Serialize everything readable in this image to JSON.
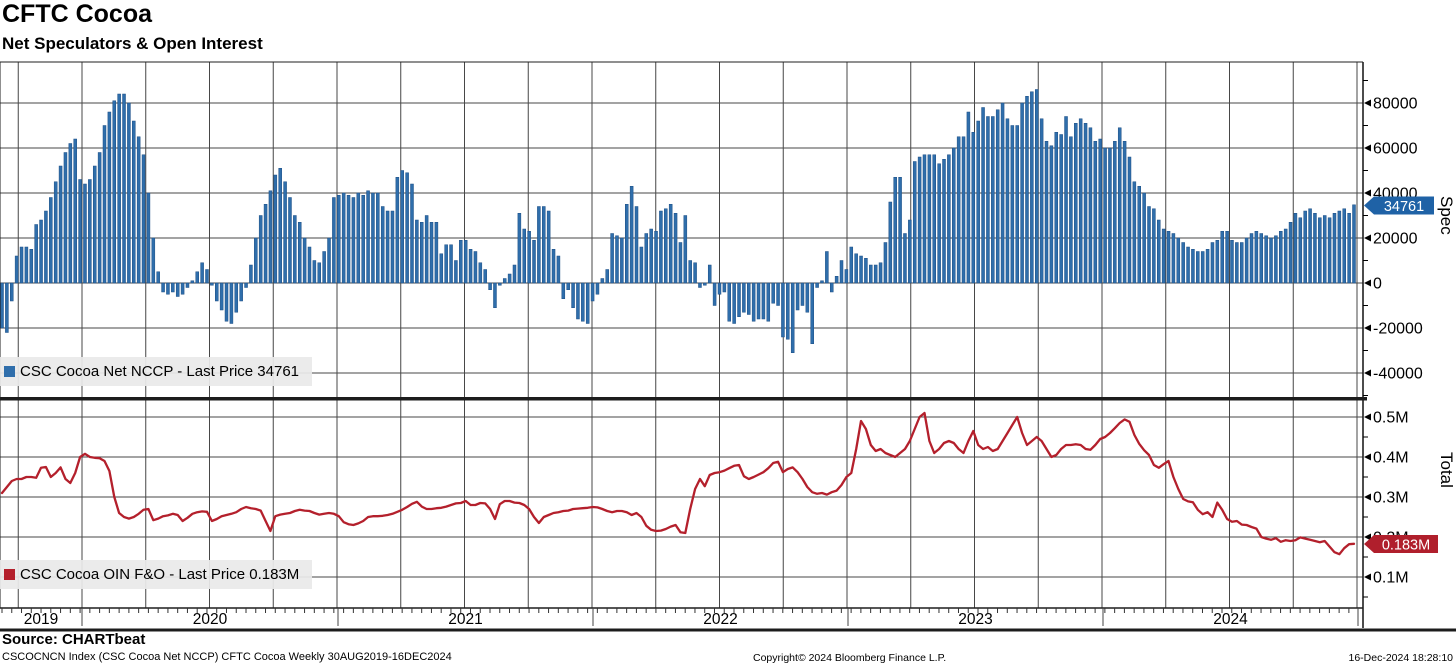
{
  "header": {
    "title": "CFTC Cocoa",
    "subtitle": "Net Speculators & Open Interest"
  },
  "panels": {
    "spec": {
      "legend_label": "CSC Cocoa Net NCCP - Last Price 34761",
      "axis_title": "Spec",
      "badge": "34761",
      "y_ticks": [
        {
          "label": "80000",
          "value": 80000
        },
        {
          "label": "60000",
          "value": 60000
        },
        {
          "label": "40000",
          "value": 40000
        },
        {
          "label": "20000",
          "value": 20000
        },
        {
          "label": "0",
          "value": 0
        },
        {
          "label": "-20000",
          "value": -20000
        },
        {
          "label": "-40000",
          "value": -40000
        }
      ]
    },
    "total": {
      "legend_label": "CSC Cocoa OIN F&O - Last Price 0.183M",
      "axis_title": "Total",
      "badge": "0.183M",
      "y_ticks": [
        {
          "label": "0.5M",
          "value": 0.5
        },
        {
          "label": "0.4M",
          "value": 0.4
        },
        {
          "label": "0.3M",
          "value": 0.3
        },
        {
          "label": "0.2M",
          "value": 0.2
        },
        {
          "label": "0.1M",
          "value": 0.1
        }
      ]
    }
  },
  "x_axis": {
    "years": [
      "2019",
      "2020",
      "2021",
      "2022",
      "2023",
      "2024"
    ]
  },
  "footer": {
    "source": "Source: CHARTbeat",
    "left_note": "CSCOCNCN Index (CSC Cocoa Net NCCP) CFTC Cocoa  Weekly 30AUG2019-16DEC2024",
    "copyright": "Copyright© 2024 Bloomberg Finance L.P.",
    "datetime": "16-Dec-2024 18:28:10"
  },
  "colors": {
    "bar": "#2f6eab",
    "bar_edge": "#1d4f85",
    "spec_badge": "#1f62a6",
    "line": "#b4202c",
    "total_badge": "#b01f2c",
    "grid": "#474747",
    "border": "#1f1f1f"
  },
  "chart_data": [
    {
      "type": "bar",
      "name": "CSC Cocoa Net NCCP",
      "panel": "Spec",
      "frequency": "Weekly",
      "period": "30AUG2019-16DEC2024",
      "last_price": 34761,
      "ylim": [
        -50000,
        98000
      ],
      "y_grid_step": 20000,
      "values": [
        -20000,
        -22000,
        -8000,
        12000,
        16000,
        16000,
        15000,
        26000,
        28000,
        32000,
        38000,
        45000,
        52000,
        58000,
        62000,
        64000,
        46000,
        44000,
        46000,
        52000,
        58000,
        70000,
        76000,
        81000,
        84000,
        84000,
        80000,
        72000,
        65000,
        57000,
        40000,
        20000,
        5000,
        -4000,
        -5000,
        -4000,
        -6000,
        -5000,
        -2000,
        1000,
        5000,
        9000,
        6000,
        -1000,
        -8000,
        -12000,
        -17000,
        -18000,
        -13000,
        -8000,
        -2000,
        8000,
        20000,
        30000,
        35000,
        41000,
        48000,
        51000,
        45000,
        38000,
        30000,
        27000,
        20000,
        16000,
        10000,
        9000,
        14000,
        20000,
        38000,
        39000,
        40000,
        39000,
        38000,
        40000,
        39000,
        41000,
        40000,
        40000,
        34000,
        32000,
        32000,
        47000,
        50000,
        49000,
        44000,
        28000,
        27000,
        30000,
        27000,
        27000,
        13000,
        17000,
        17000,
        10000,
        19000,
        19000,
        15000,
        14000,
        9000,
        6000,
        -3000,
        -11000,
        -1000,
        2000,
        4000,
        8000,
        31000,
        24000,
        23000,
        19000,
        34000,
        34000,
        32000,
        15000,
        12000,
        -7000,
        -3000,
        -11000,
        -16000,
        -17000,
        -18000,
        -8000,
        -5000,
        2000,
        6000,
        22000,
        21000,
        20000,
        35000,
        43000,
        34000,
        16000,
        22000,
        24000,
        23000,
        32000,
        33000,
        35000,
        31000,
        18000,
        30000,
        10000,
        9000,
        -2000,
        -1000,
        8000,
        -10000,
        -5000,
        -4000,
        -17000,
        -18000,
        -15000,
        -13000,
        -14000,
        -17000,
        -16000,
        -16000,
        -17000,
        -9000,
        -10000,
        -24000,
        -25000,
        -31000,
        -12000,
        -10000,
        -13000,
        -27000,
        -2000,
        1000,
        14000,
        -4000,
        3000,
        10000,
        6000,
        16000,
        13000,
        12000,
        11000,
        8000,
        8000,
        9000,
        18000,
        36000,
        47000,
        47000,
        22000,
        28000,
        54000,
        56000,
        57000,
        57000,
        57000,
        53000,
        55000,
        57000,
        60000,
        65000,
        65000,
        76000,
        67000,
        72000,
        78000,
        74000,
        74000,
        77000,
        80000,
        73000,
        70000,
        70000,
        80000,
        83000,
        85000,
        86000,
        73000,
        63000,
        61000,
        67000,
        66000,
        74000,
        65000,
        71000,
        73000,
        71000,
        69000,
        63000,
        64000,
        60000,
        60000,
        63000,
        69000,
        63000,
        56000,
        45000,
        43000,
        40000,
        34000,
        33000,
        28000,
        24000,
        23000,
        22000,
        20000,
        18000,
        16000,
        15000,
        14000,
        14000,
        15000,
        18000,
        19000,
        23000,
        23000,
        19000,
        18000,
        18000,
        20000,
        22000,
        23000,
        22000,
        21000,
        20000,
        21000,
        23000,
        24000,
        27000,
        31000,
        29000,
        32000,
        33000,
        31000,
        29000,
        30000,
        29000,
        31000,
        32000,
        33000,
        31000,
        34761
      ]
    },
    {
      "type": "line",
      "name": "CSC Cocoa OIN F&O",
      "panel": "Total",
      "frequency": "Weekly",
      "period": "30AUG2019-16DEC2024",
      "last_price": "0.183M",
      "ylim": [
        0.05,
        0.545
      ],
      "y_grid_step": 0.1,
      "values": [
        0.31,
        0.325,
        0.34,
        0.345,
        0.345,
        0.35,
        0.35,
        0.348,
        0.373,
        0.375,
        0.35,
        0.36,
        0.374,
        0.345,
        0.335,
        0.36,
        0.4,
        0.408,
        0.4,
        0.398,
        0.397,
        0.39,
        0.365,
        0.3,
        0.26,
        0.25,
        0.246,
        0.25,
        0.258,
        0.268,
        0.27,
        0.242,
        0.246,
        0.252,
        0.254,
        0.258,
        0.255,
        0.24,
        0.248,
        0.258,
        0.262,
        0.264,
        0.263,
        0.24,
        0.245,
        0.252,
        0.255,
        0.258,
        0.262,
        0.27,
        0.275,
        0.272,
        0.27,
        0.266,
        0.24,
        0.215,
        0.252,
        0.256,
        0.258,
        0.26,
        0.265,
        0.268,
        0.266,
        0.265,
        0.26,
        0.256,
        0.258,
        0.26,
        0.258,
        0.252,
        0.237,
        0.232,
        0.23,
        0.234,
        0.24,
        0.25,
        0.252,
        0.252,
        0.253,
        0.255,
        0.258,
        0.263,
        0.268,
        0.275,
        0.283,
        0.288,
        0.276,
        0.27,
        0.27,
        0.272,
        0.273,
        0.276,
        0.28,
        0.284,
        0.285,
        0.29,
        0.28,
        0.28,
        0.285,
        0.284,
        0.27,
        0.245,
        0.282,
        0.29,
        0.29,
        0.286,
        0.285,
        0.28,
        0.27,
        0.25,
        0.235,
        0.25,
        0.255,
        0.26,
        0.262,
        0.265,
        0.266,
        0.27,
        0.271,
        0.272,
        0.273,
        0.275,
        0.274,
        0.27,
        0.265,
        0.262,
        0.265,
        0.265,
        0.262,
        0.255,
        0.26,
        0.25,
        0.228,
        0.218,
        0.215,
        0.216,
        0.22,
        0.226,
        0.23,
        0.212,
        0.21,
        0.27,
        0.32,
        0.345,
        0.327,
        0.355,
        0.36,
        0.362,
        0.366,
        0.372,
        0.378,
        0.38,
        0.352,
        0.345,
        0.35,
        0.356,
        0.362,
        0.372,
        0.385,
        0.388,
        0.362,
        0.37,
        0.374,
        0.362,
        0.345,
        0.325,
        0.312,
        0.308,
        0.31,
        0.306,
        0.312,
        0.316,
        0.33,
        0.35,
        0.36,
        0.42,
        0.49,
        0.47,
        0.43,
        0.415,
        0.42,
        0.41,
        0.405,
        0.4,
        0.41,
        0.42,
        0.44,
        0.47,
        0.5,
        0.51,
        0.44,
        0.41,
        0.42,
        0.435,
        0.44,
        0.435,
        0.42,
        0.41,
        0.44,
        0.465,
        0.43,
        0.42,
        0.425,
        0.415,
        0.42,
        0.44,
        0.46,
        0.48,
        0.5,
        0.46,
        0.43,
        0.44,
        0.45,
        0.44,
        0.42,
        0.4,
        0.405,
        0.42,
        0.43,
        0.43,
        0.432,
        0.43,
        0.42,
        0.418,
        0.43,
        0.445,
        0.45,
        0.46,
        0.472,
        0.485,
        0.494,
        0.488,
        0.455,
        0.433,
        0.417,
        0.405,
        0.38,
        0.373,
        0.382,
        0.39,
        0.35,
        0.32,
        0.295,
        0.289,
        0.287,
        0.268,
        0.257,
        0.262,
        0.25,
        0.286,
        0.268,
        0.245,
        0.238,
        0.24,
        0.231,
        0.23,
        0.225,
        0.221,
        0.2,
        0.196,
        0.193,
        0.197,
        0.188,
        0.192,
        0.19,
        0.192,
        0.199,
        0.196,
        0.193,
        0.19,
        0.187,
        0.19,
        0.176,
        0.162,
        0.157,
        0.172,
        0.182,
        0.183
      ]
    }
  ]
}
